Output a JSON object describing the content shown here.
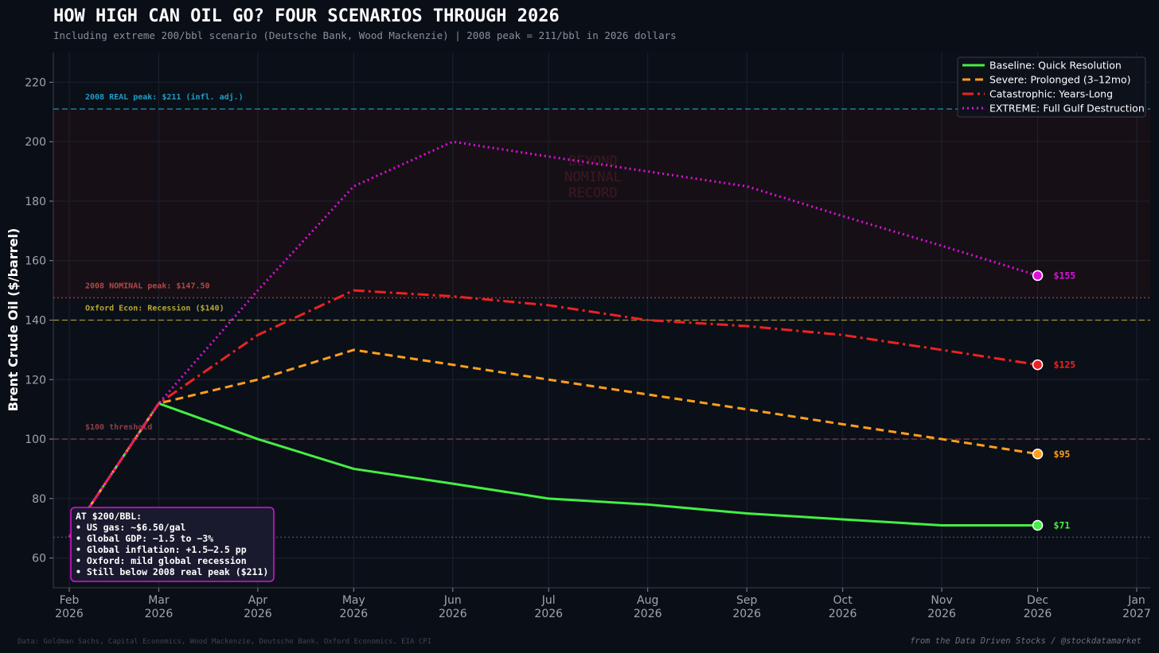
{
  "chart_data": {
    "type": "line",
    "title": "HOW HIGH CAN OIL GO? FOUR SCENARIOS THROUGH 2026",
    "subtitle": "Including extreme 200/bbl scenario (Deutsche Bank, Wood Mackenzie) | 2008 peak = 211/bbl in 2026 dollars",
    "y_label": "Brent Crude Oil ($/barrel)",
    "x": [
      "2026-02",
      "2026-03",
      "2026-04",
      "2026-05",
      "2026-06",
      "2026-07",
      "2026-08",
      "2026-09",
      "2026-10",
      "2026-11",
      "2026-12"
    ],
    "series": [
      {
        "name": "Baseline: Quick Resolution",
        "color": "#44ee44",
        "style": "solid",
        "values": [
          67,
          112,
          100,
          90,
          85,
          80,
          78,
          75,
          73,
          71,
          71
        ],
        "value_labels": [
          null,
          null,
          null,
          null,
          null,
          null,
          null,
          null,
          null,
          null,
          "$71"
        ]
      },
      {
        "name": "Severe: Prolonged (3–12mo)",
        "color": "#ff9f1c",
        "style": "dashed",
        "values": [
          67,
          112,
          120,
          130,
          125,
          120,
          115,
          110,
          105,
          100,
          95
        ],
        "value_labels": [
          null,
          null,
          null,
          null,
          null,
          null,
          null,
          null,
          null,
          null,
          "$95"
        ]
      },
      {
        "name": "Catastrophic: Years-Long",
        "color": "#ee2222",
        "style": "dashdot",
        "values": [
          67,
          112,
          135,
          150,
          148,
          145,
          140,
          138,
          135,
          130,
          125
        ],
        "value_labels": [
          null,
          null,
          null,
          null,
          null,
          null,
          null,
          null,
          null,
          null,
          "$125"
        ]
      },
      {
        "name": "EXTREME: Full Gulf Destruction",
        "color": "#dd11dd",
        "style": "dotted",
        "values": [
          67,
          112,
          150,
          185,
          200,
          195,
          190,
          185,
          175,
          165,
          155
        ],
        "value_labels": [
          null,
          null,
          null,
          null,
          null,
          null,
          null,
          null,
          null,
          null,
          "$155"
        ]
      }
    ],
    "xlim": [
      "2026-02",
      "2027-01"
    ],
    "xticks": [
      {
        "value": "2026-02",
        "label": "Feb 2026"
      },
      {
        "value": "2026-03",
        "label": "Mar 2026"
      },
      {
        "value": "2026-04",
        "label": "Apr 2026"
      },
      {
        "value": "2026-05",
        "label": "May 2026"
      },
      {
        "value": "2026-06",
        "label": "Jun 2026"
      },
      {
        "value": "2026-07",
        "label": "Jul 2026"
      },
      {
        "value": "2026-08",
        "label": "Aug 2026"
      },
      {
        "value": "2026-09",
        "label": "Sep 2026"
      },
      {
        "value": "2026-10",
        "label": "Oct 2026"
      },
      {
        "value": "2026-11",
        "label": "Nov 2026"
      },
      {
        "value": "2026-12",
        "label": "Dec 2026"
      },
      {
        "value": "2027-01",
        "label": "Jan 2027"
      }
    ],
    "ylim": [
      50,
      230
    ],
    "yticks": [
      60,
      80,
      100,
      120,
      140,
      160,
      180,
      200,
      220
    ],
    "grid": true,
    "legend": "upper right",
    "shaded_range": {
      "from": 147.5,
      "to": 211,
      "label": "BEYOND NOMINAL RECORD"
    },
    "reference_lines": [
      {
        "value": 211,
        "label": "2008 REAL peak: $211 (infl. adj.)",
        "color": "#1e9ec4",
        "style": "dashed"
      },
      {
        "value": 147.5,
        "label": "2008 NOMINAL peak: $147.50",
        "color": "#b04848",
        "style": "dotted"
      },
      {
        "value": 140,
        "label": "Oxford Econ: Recession ($140)",
        "color": "#b8a830",
        "style": "dashed"
      },
      {
        "value": 100,
        "label": "$100 threshold",
        "color": "#8a4048",
        "style": "dashed"
      },
      {
        "value": 67,
        "color": "#555a66",
        "style": "dotted"
      }
    ],
    "annotation": {
      "title": "AT $200/BBL:",
      "lines": [
        "• US gas: ~$6.50/gal",
        "• Global GDP: −1.5 to −3%",
        "• Global inflation: +1.5–2.5 pp",
        "• Oxford: mild global recession",
        "• Still below 2008 real peak ($211)"
      ]
    },
    "source": "Data: Goldman Sachs, Capital Economics, Wood Mackenzie, Deutsche Bank, Oxford Economics, EIA CPI",
    "credit": "from the Data Driven Stocks / @stockdatamarket"
  }
}
